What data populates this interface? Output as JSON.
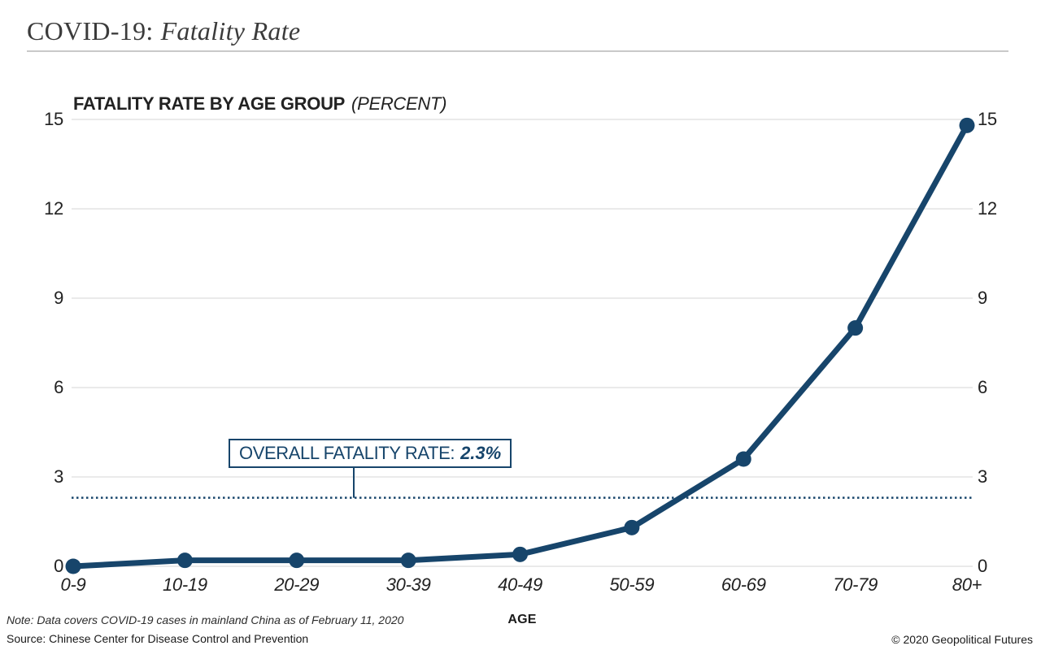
{
  "header": {
    "title_prefix": "COVID-19:",
    "title_italic": "Fatality Rate"
  },
  "chart_data": {
    "type": "line",
    "title": "FATALITY RATE BY AGE GROUP",
    "title_unit": "(PERCENT)",
    "categories": [
      "0-9",
      "10-19",
      "20-29",
      "30-39",
      "40-49",
      "50-59",
      "60-69",
      "70-79",
      "80+"
    ],
    "values": [
      0,
      0.2,
      0.2,
      0.2,
      0.4,
      1.3,
      3.6,
      8.0,
      14.8
    ],
    "xlabel": "AGE",
    "ylim": [
      0,
      15
    ],
    "yticks": [
      0,
      3,
      6,
      9,
      12,
      15
    ],
    "grid": true,
    "legend": "none",
    "reference_line": {
      "value": 2.3,
      "label": "OVERALL FATALITY RATE:",
      "value_label": "2.3%"
    },
    "colors": {
      "series": "#17456B",
      "reference": "#17456B",
      "grid": "#E3E3E3"
    }
  },
  "footer": {
    "note": "Note: Data covers COVID-19 cases in mainland China as of February 11, 2020",
    "source": "Source: Chinese Center for Disease Control and Prevention",
    "copyright": "© 2020 Geopolitical Futures"
  }
}
